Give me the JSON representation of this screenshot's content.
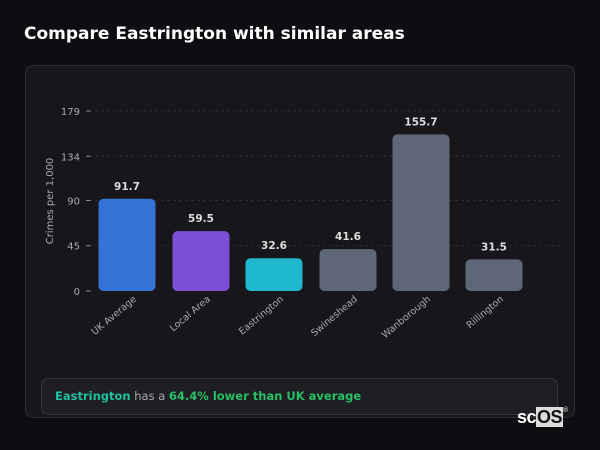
{
  "title": "Compare Eastrington with similar areas",
  "chart_data": {
    "type": "bar",
    "ylabel": "Crimes per 1,000",
    "yticks": [
      0,
      45,
      90,
      134,
      179
    ],
    "ylim": [
      0,
      179
    ],
    "grid": true,
    "categories": [
      "UK Average",
      "Local Area",
      "Eastrington",
      "Swineshead",
      "Wanborough",
      "Rillington"
    ],
    "values": [
      91.7,
      59.5,
      32.6,
      41.6,
      155.7,
      31.5
    ],
    "colors": [
      "#3573d9",
      "#7b4fd6",
      "#1fb8cf",
      "#5d6778",
      "#5d6778",
      "#5d6778"
    ]
  },
  "summary": {
    "place": "Eastrington",
    "connector": " has a ",
    "comparison": "64.4% lower than UK average"
  },
  "logo": {
    "text_a": "sc",
    "text_b": "OS",
    "mark": "®"
  }
}
